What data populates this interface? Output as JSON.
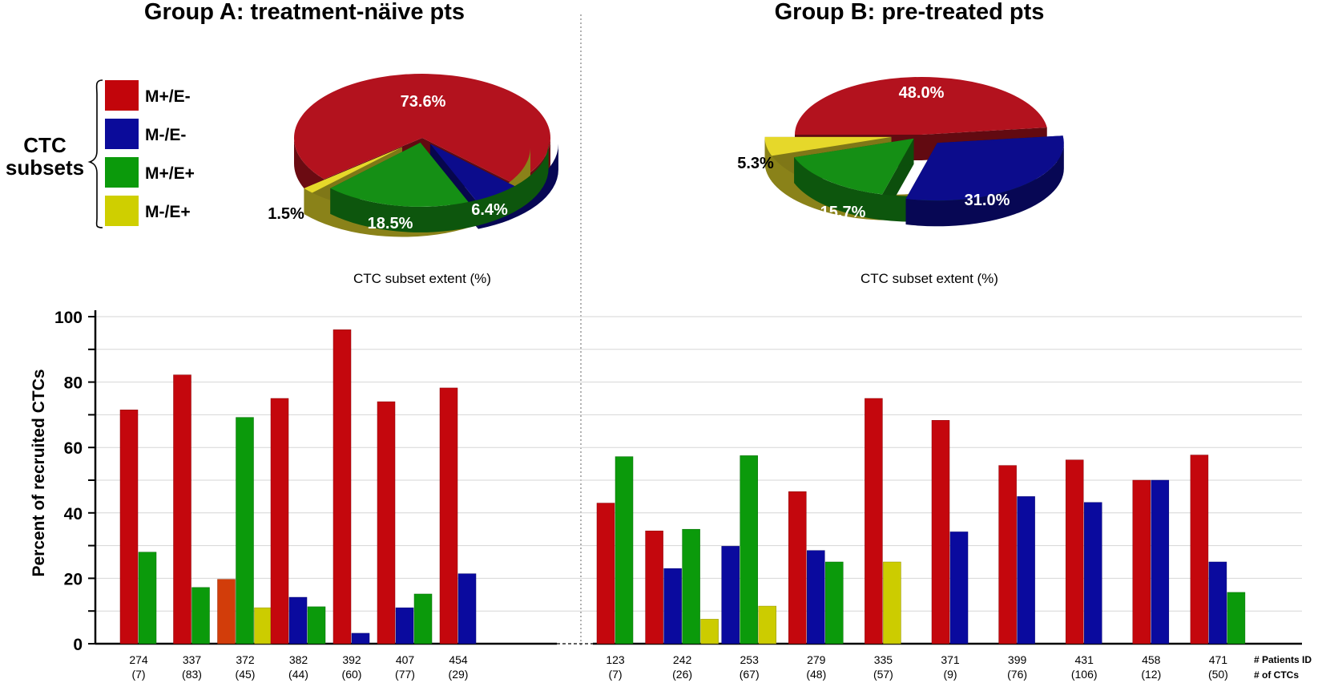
{
  "chart_data": [
    {
      "type": "pie",
      "title": "Group A: treatment-näive pts",
      "caption": "CTC subset extent (%)",
      "slices": [
        {
          "label": "M+/E-",
          "value": 73.6,
          "text": "73.6%",
          "color": "#b3121e"
        },
        {
          "label": "M-/E-",
          "value": 6.4,
          "text": "6.4%",
          "color": "#0c0c8c"
        },
        {
          "label": "M+/E+",
          "value": 18.5,
          "text": "18.5%",
          "color": "#158f15"
        },
        {
          "label": "M-/E+",
          "value": 1.5,
          "text": "1.5%",
          "color": "#e6d82a"
        }
      ]
    },
    {
      "type": "pie",
      "title": "Group B: pre-treated pts",
      "caption": "CTC subset extent (%)",
      "slices": [
        {
          "label": "M+/E-",
          "value": 48.0,
          "text": "48.0%",
          "color": "#b3121e"
        },
        {
          "label": "M-/E-",
          "value": 31.0,
          "text": "31.0%",
          "color": "#0c0c8c"
        },
        {
          "label": "M+/E+",
          "value": 15.7,
          "text": "15.7%",
          "color": "#158f15"
        },
        {
          "label": "M-/E+",
          "value": 5.3,
          "text": "5.3%",
          "color": "#e6d82a"
        }
      ]
    },
    {
      "type": "bar",
      "ylabel": "Percent of recruited CTCs",
      "ylim": [
        0,
        100
      ],
      "yticks": [
        0,
        20,
        40,
        60,
        80,
        100
      ],
      "grid": true,
      "x_row_label": "# Patients ID",
      "count_row_label": "# of CTCs",
      "series_names": [
        "M+/E-",
        "M-/E-",
        "M+/E+",
        "M-/E+"
      ],
      "series_colors": [
        "#c4070d",
        "#0a0a9e",
        "#0b9a0b",
        "#cccc00"
      ],
      "groups": [
        {
          "name": "Group A",
          "patients": [
            {
              "id": "274",
              "ctcs": "(7)",
              "bars": [
                {
                  "s": 0,
                  "v": 71.5
                },
                {
                  "s": 2,
                  "v": 28
                }
              ]
            },
            {
              "id": "337",
              "ctcs": "(83)",
              "bars": [
                {
                  "s": 0,
                  "v": 82.2
                },
                {
                  "s": 2,
                  "v": 17.2
                }
              ]
            },
            {
              "id": "372",
              "ctcs": "(45)",
              "bars": [
                {
                  "s": 0,
                  "v": 19.7,
                  "color": "#d23d0a"
                },
                {
                  "s": 2,
                  "v": 69.2
                },
                {
                  "s": 3,
                  "v": 11
                }
              ]
            },
            {
              "id": "382",
              "ctcs": "(44)",
              "bars": [
                {
                  "s": 0,
                  "v": 75
                },
                {
                  "s": 1,
                  "v": 14.2
                },
                {
                  "s": 2,
                  "v": 11.3
                }
              ]
            },
            {
              "id": "392",
              "ctcs": "(60)",
              "bars": [
                {
                  "s": 0,
                  "v": 96
                },
                {
                  "s": 1,
                  "v": 3.2
                }
              ]
            },
            {
              "id": "407",
              "ctcs": "(77)",
              "bars": [
                {
                  "s": 0,
                  "v": 74
                },
                {
                  "s": 1,
                  "v": 11
                },
                {
                  "s": 2,
                  "v": 15.2
                }
              ]
            },
            {
              "id": "454",
              "ctcs": "(29)",
              "bars": [
                {
                  "s": 0,
                  "v": 78.2
                },
                {
                  "s": 1,
                  "v": 21.4
                }
              ]
            }
          ]
        },
        {
          "name": "Group B",
          "patients": [
            {
              "id": "123",
              "ctcs": "(7)",
              "bars": [
                {
                  "s": 0,
                  "v": 43
                },
                {
                  "s": 2,
                  "v": 57.2
                }
              ]
            },
            {
              "id": "242",
              "ctcs": "(26)",
              "bars": [
                {
                  "s": 0,
                  "v": 34.5
                },
                {
                  "s": 1,
                  "v": 23
                },
                {
                  "s": 2,
                  "v": 35
                },
                {
                  "s": 3,
                  "v": 7.5
                }
              ]
            },
            {
              "id": "253",
              "ctcs": "(67)",
              "bars": [
                {
                  "s": 1,
                  "v": 29.8
                },
                {
                  "s": 2,
                  "v": 57.5
                },
                {
                  "s": 3,
                  "v": 11.5
                }
              ]
            },
            {
              "id": "279",
              "ctcs": "(48)",
              "bars": [
                {
                  "s": 0,
                  "v": 46.5
                },
                {
                  "s": 1,
                  "v": 28.5
                },
                {
                  "s": 2,
                  "v": 25
                }
              ]
            },
            {
              "id": "335",
              "ctcs": "(57)",
              "bars": [
                {
                  "s": 0,
                  "v": 75
                },
                {
                  "s": 3,
                  "v": 25
                }
              ]
            },
            {
              "id": "371",
              "ctcs": "(9)",
              "bars": [
                {
                  "s": 0,
                  "v": 68.3
                },
                {
                  "s": 1,
                  "v": 34.2
                }
              ]
            },
            {
              "id": "399",
              "ctcs": "(76)",
              "bars": [
                {
                  "s": 0,
                  "v": 54.5
                },
                {
                  "s": 1,
                  "v": 45
                }
              ]
            },
            {
              "id": "431",
              "ctcs": "(106)",
              "bars": [
                {
                  "s": 0,
                  "v": 56.2
                },
                {
                  "s": 1,
                  "v": 43.2
                }
              ]
            },
            {
              "id": "458",
              "ctcs": "(12)",
              "bars": [
                {
                  "s": 0,
                  "v": 50
                },
                {
                  "s": 1,
                  "v": 50
                }
              ]
            },
            {
              "id": "471",
              "ctcs": "(50)",
              "bars": [
                {
                  "s": 0,
                  "v": 57.7
                },
                {
                  "s": 1,
                  "v": 25
                },
                {
                  "s": 2,
                  "v": 15.7
                }
              ]
            }
          ]
        }
      ]
    }
  ],
  "legend": {
    "heading_line1": "CTC",
    "heading_line2": "subsets",
    "items": [
      {
        "label": "M+/E-",
        "color": "#c2050b"
      },
      {
        "label": "M-/E-",
        "color": "#0b0b9a"
      },
      {
        "label": "M+/E+",
        "color": "#0b9a0b"
      },
      {
        "label": "M-/E+",
        "color": "#cfcf00"
      }
    ]
  }
}
